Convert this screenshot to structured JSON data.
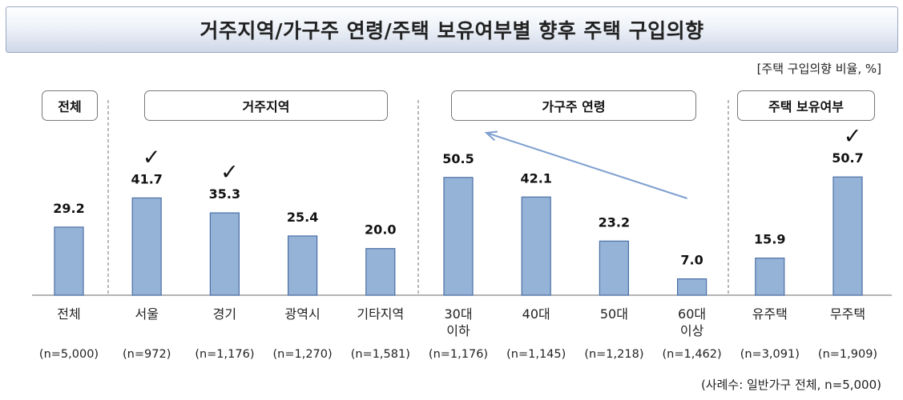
{
  "title": "거주지역/가구주 연령/주택 보유여부별 향후 주택 구입의향",
  "unit_note": "[주택 구입의향 비율, %]",
  "footnote": "(사례수: 일반가구 전체, n=5,000)",
  "groups": [
    {
      "label": "전체"
    },
    {
      "label": "거주지역"
    },
    {
      "label": "가구주 연령"
    },
    {
      "label": "주택 보유여부"
    }
  ],
  "colors": {
    "bar": "#95b3d7",
    "bar_stroke": "#4a6fa5",
    "arrow": "#7f9fd0"
  },
  "chart_data": {
    "type": "bar",
    "ylim": [
      0,
      60
    ],
    "categories": [
      {
        "label": [
          "전체"
        ],
        "n": "(n=5,000)"
      },
      {
        "label": [
          "서울"
        ],
        "n": "(n=972)"
      },
      {
        "label": [
          "경기"
        ],
        "n": "(n=1,176)"
      },
      {
        "label": [
          "광역시"
        ],
        "n": "(n=1,270)"
      },
      {
        "label": [
          "기타지역"
        ],
        "n": "(n=1,581)"
      },
      {
        "label": [
          "30대",
          "이하"
        ],
        "n": "(n=1,176)"
      },
      {
        "label": [
          "40대"
        ],
        "n": "(n=1,145)"
      },
      {
        "label": [
          "50대"
        ],
        "n": "(n=1,218)"
      },
      {
        "label": [
          "60대",
          "이상"
        ],
        "n": "(n=1,462)"
      },
      {
        "label": [
          "유주택"
        ],
        "n": "(n=3,091)"
      },
      {
        "label": [
          "무주택"
        ],
        "n": "(n=1,909)"
      }
    ],
    "values": [
      29.2,
      41.7,
      35.3,
      25.4,
      20.0,
      50.5,
      42.1,
      23.2,
      7.0,
      15.9,
      50.7
    ],
    "checkmarks": [
      "서울",
      "경기",
      "무주택"
    ],
    "check_symbol": "✓",
    "trend_arrow": {
      "from": "60대 이상",
      "to": "30대 이하"
    }
  }
}
